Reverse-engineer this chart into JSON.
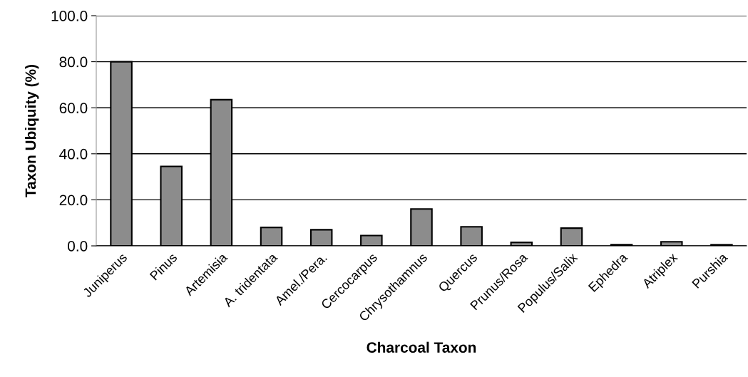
{
  "chart_data": {
    "type": "bar",
    "xlabel": "Charcoal Taxon",
    "ylabel": "Taxon Ubiquity (%)",
    "categories": [
      "Juniperus",
      "Pinus",
      "Artemisia",
      "A. tridentata",
      "Amel./Pera.",
      "Cercocarpus",
      "Chrysothamnus",
      "Quercus",
      "Prunus/Rosa",
      "Populus/Salix",
      "Ephedra",
      "Atriplex",
      "Purshia"
    ],
    "values": [
      80.0,
      34.5,
      63.5,
      8.0,
      7.0,
      4.5,
      16.0,
      8.3,
      1.5,
      7.7,
      0.5,
      1.8,
      0.5
    ],
    "color": "#8c8c8c",
    "ylim": [
      0,
      100
    ],
    "yticks": [
      {
        "value": 0,
        "label": "0.0"
      },
      {
        "value": 20,
        "label": "20.0"
      },
      {
        "value": 40,
        "label": "40.0"
      },
      {
        "value": 60,
        "label": "60.0"
      },
      {
        "value": 80,
        "label": "80.0"
      },
      {
        "value": 100,
        "label": "100.0"
      }
    ],
    "grid": "y"
  }
}
